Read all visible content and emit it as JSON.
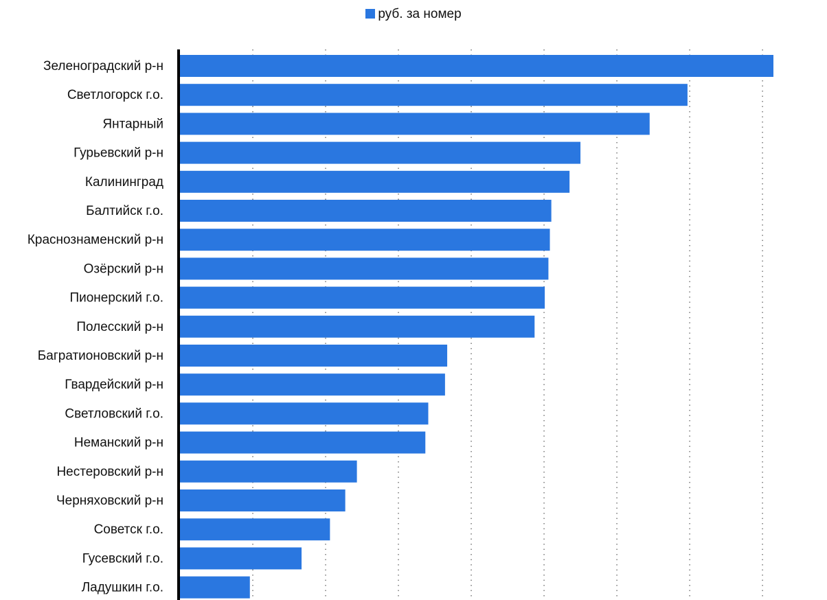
{
  "chart_data": {
    "type": "bar",
    "orientation": "horizontal",
    "legend": {
      "position": "top-center"
    },
    "grid": {
      "x": true,
      "style": "dotted"
    },
    "xlim": [
      0,
      8150
    ],
    "series": [
      {
        "name": "руб. за номер",
        "color": "#2a77e0",
        "values": [
          8150,
          6970,
          6450,
          5500,
          5350,
          5100,
          5080,
          5060,
          5010,
          4870,
          3670,
          3640,
          3410,
          3370,
          2430,
          2270,
          2060,
          1670,
          960
        ]
      }
    ],
    "categories": [
      "Зеленоградский р-н",
      "Светлогорск г.о.",
      "Янтарный",
      "Гурьевский р-н",
      "Калининград",
      "Балтийск г.о.",
      "Краснознаменский р-н",
      "Озёрский р-н",
      "Пионерский г.о.",
      "Полесский р-н",
      "Багратионовский р-н",
      "Гвардейский р-н",
      "Светловский г.о.",
      "Неманский р-н",
      "Нестеровский р-н",
      "Черняховский р-н",
      "Советск г.о.",
      "Гусевский г.о.",
      "Ладушкин г.о."
    ],
    "gridlines": [
      1000,
      2000,
      3000,
      4000,
      5000,
      6000,
      7000,
      8000
    ]
  }
}
